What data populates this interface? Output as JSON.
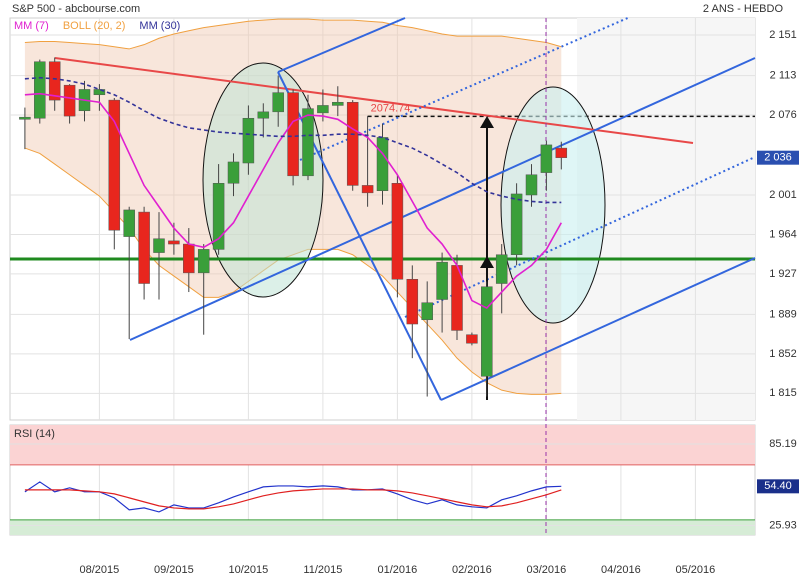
{
  "header": {
    "title": "S&P 500 - abcbourse.com",
    "period": "2 ANS - HEBDO"
  },
  "chart_data": [
    {
      "type": "candlestick",
      "x": [
        0,
        1,
        2,
        3,
        4,
        5,
        6,
        7,
        8,
        9,
        10,
        11,
        12,
        13,
        14,
        15,
        16,
        17,
        18,
        19,
        20,
        21,
        22,
        23,
        24,
        25,
        26,
        27,
        28,
        29,
        30,
        31,
        32,
        33,
        34,
        35,
        36
      ],
      "open": [
        2072,
        2073,
        2126,
        2104,
        2080,
        2095,
        2090,
        1962,
        1985,
        1947,
        1958,
        1955,
        1928,
        1950,
        2012,
        2031,
        2073,
        2079,
        2097,
        2019,
        2078,
        2085,
        2088,
        2010,
        2005,
        2012,
        1922,
        1884,
        1903,
        1935,
        1870,
        1831,
        1918,
        1945,
        2001,
        2022,
        2045
      ],
      "high": [
        2083,
        2128,
        2130,
        2105,
        2108,
        2105,
        2092,
        1990,
        1990,
        1985,
        1975,
        1970,
        1955,
        2030,
        2040,
        2085,
        2087,
        2113,
        2100,
        2095,
        2100,
        2103,
        2090,
        2075,
        2068,
        2020,
        1935,
        1920,
        1947,
        1945,
        1872,
        1920,
        1955,
        2012,
        2030,
        2052,
        2051
      ],
      "low": [
        2044,
        2068,
        2080,
        2068,
        2070,
        2080,
        1950,
        1866,
        1903,
        1903,
        1945,
        1910,
        1870,
        1945,
        2000,
        2020,
        2055,
        2065,
        2010,
        2015,
        2070,
        2075,
        2005,
        1990,
        1992,
        1905,
        1848,
        1812,
        1872,
        1865,
        1860,
        1812,
        1890,
        1935,
        1990,
        2005,
        2025
      ],
      "close": [
        2074,
        2126,
        2090,
        2075,
        2100,
        2100,
        1968,
        1987,
        1918,
        1960,
        1955,
        1928,
        1950,
        2012,
        2032,
        2073,
        2079,
        2097,
        2019,
        2082,
        2085,
        2088,
        2010,
        2003,
        2055,
        1922,
        1880,
        1900,
        1938,
        1874,
        1862,
        1915,
        1945,
        2002,
        2020,
        2048,
        2036
      ],
      "up_color": "#3a9f3a",
      "down_color": "#e8261e",
      "series": [
        {
          "name": "MM (7)",
          "color": "#e020d0",
          "values": [
            2095,
            2096,
            2094,
            2092,
            2090,
            2088,
            2070,
            2040,
            2010,
            1990,
            1970,
            1955,
            1952,
            1960,
            1975,
            2000,
            2025,
            2050,
            2070,
            2076,
            2075,
            2072,
            2063,
            2055,
            2040,
            2020,
            1995,
            1970,
            1955,
            1935,
            1902,
            1895,
            1910,
            1925,
            1935,
            1950,
            1975
          ]
        },
        {
          "name": "BOLL (20, 2)",
          "color": "#f0a040",
          "upper": [
            2144,
            2145,
            2145,
            2144,
            2143,
            2142,
            2140,
            2138,
            2142,
            2148,
            2152,
            2155,
            2158,
            2160,
            2162,
            2164,
            2165,
            2166,
            2166,
            2166,
            2165,
            2165,
            2165,
            2164,
            2163,
            2160,
            2158,
            2155,
            2152,
            2150,
            2150,
            2150,
            2150,
            2148,
            2146,
            2144,
            2140
          ],
          "lower": [
            2045,
            2040,
            2030,
            2020,
            2010,
            2000,
            1985,
            1970,
            1950,
            1935,
            1925,
            1915,
            1905,
            1905,
            1910,
            1920,
            1930,
            1940,
            1945,
            1950,
            1950,
            1950,
            1945,
            1935,
            1925,
            1910,
            1895,
            1880,
            1865,
            1848,
            1835,
            1825,
            1818,
            1815,
            1814,
            1814,
            1815
          ]
        },
        {
          "name": "MM (30)",
          "color": "#333399",
          "values": [
            2110,
            2111,
            2110,
            2108,
            2105,
            2100,
            2095,
            2088,
            2080,
            2073,
            2068,
            2064,
            2062,
            2060,
            2059,
            2058,
            2057,
            2056,
            2056,
            2057,
            2057,
            2058,
            2058,
            2057,
            2055,
            2050,
            2045,
            2038,
            2030,
            2022,
            2012,
            2004,
            2000,
            1997,
            1995,
            1994,
            1994
          ]
        }
      ],
      "xlim": [
        -1,
        49
      ],
      "xticks": [
        {
          "value": 5,
          "label": "08/2015"
        },
        {
          "value": 10,
          "label": "09/2015"
        },
        {
          "value": 15,
          "label": "10/2015"
        },
        {
          "value": 20,
          "label": "11/2015"
        },
        {
          "value": 25,
          "label": "01/2016"
        },
        {
          "value": 30,
          "label": "02/2016"
        },
        {
          "value": 35,
          "label": "03/2016"
        },
        {
          "value": 40,
          "label": "04/2016"
        },
        {
          "value": 45,
          "label": "05/2016"
        }
      ],
      "ylim": [
        1790,
        2167
      ],
      "yticks": [
        {
          "value": 2151,
          "label": "2 151"
        },
        {
          "value": 2113,
          "label": "2 113"
        },
        {
          "value": 2076,
          "label": "2 076"
        },
        {
          "value": 2001,
          "label": "2 001"
        },
        {
          "value": 1964,
          "label": "1 964"
        },
        {
          "value": 1927,
          "label": "1 927"
        },
        {
          "value": 1889,
          "label": "1 889"
        },
        {
          "value": 1852,
          "label": "1 852"
        },
        {
          "value": 1815,
          "label": "1 815"
        }
      ],
      "last_price": {
        "value": 2036,
        "label": "2 036"
      },
      "annotation": 2074.74,
      "grid": true
    },
    {
      "type": "line",
      "title": "RSI (14)",
      "series": [
        {
          "color": "#2233cc",
          "values": [
            50.4,
            57.6,
            50.4,
            53.3,
            50.4,
            50.4,
            46.0,
            37.3,
            38.7,
            35.8,
            40.9,
            38.7,
            38.7,
            42.4,
            46.7,
            50.4,
            54.0,
            54.7,
            54.7,
            54.0,
            54.7,
            54.0,
            51.8,
            51.8,
            52.5,
            48.9,
            44.6,
            41.6,
            44.6,
            40.9,
            39.5,
            38.7,
            44.6,
            47.5,
            51.1,
            54.0,
            54.4
          ]
        },
        {
          "color": "#e02020",
          "values": [
            51.8,
            51.8,
            51.8,
            51.8,
            51.1,
            50.4,
            48.9,
            46.0,
            43.1,
            40.2,
            38.7,
            38.0,
            38.0,
            39.5,
            41.6,
            44.6,
            47.5,
            49.6,
            51.1,
            51.8,
            52.5,
            52.5,
            52.5,
            51.8,
            51.8,
            51.1,
            49.6,
            47.5,
            45.3,
            43.1,
            40.9,
            39.5,
            40.2,
            42.4,
            45.3,
            48.2,
            51.8
          ]
        }
      ],
      "ylim": [
        19,
        99
      ],
      "yticks": [
        85.19,
        25.93
      ],
      "upper_band": 70,
      "lower_band": 30,
      "last_value": {
        "value": 54.4,
        "label": "54.40"
      }
    }
  ]
}
